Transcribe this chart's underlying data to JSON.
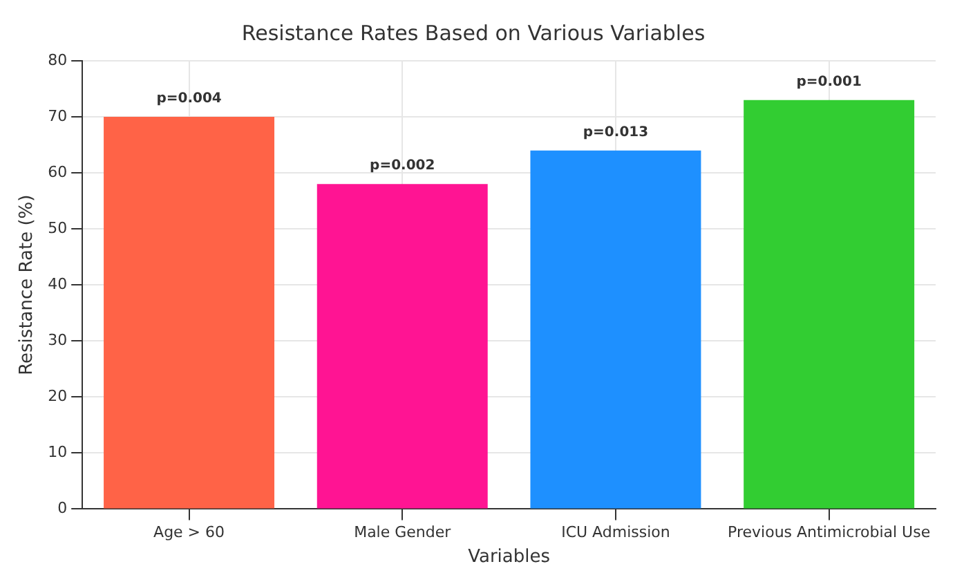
{
  "chart_data": {
    "type": "bar",
    "title": "Resistance Rates Based on Various Variables",
    "xlabel": "Variables",
    "ylabel": "Resistance Rate (%)",
    "categories": [
      "Age > 60",
      "Male Gender",
      "ICU Admission",
      "Previous Antimicrobial Use"
    ],
    "values": [
      70,
      58,
      64,
      73
    ],
    "colors": [
      "#ff6347",
      "#ff1493",
      "#1e90ff",
      "#32cd32"
    ],
    "ylim": [
      0,
      80
    ],
    "yticks": [
      0,
      10,
      20,
      30,
      40,
      50,
      60,
      70,
      80
    ],
    "grid": true,
    "annotations": [
      {
        "text": "p=0.004",
        "x": "Age > 60",
        "y": 70
      },
      {
        "text": "p=0.002",
        "x": "Male Gender",
        "y": 58
      },
      {
        "text": "p=0.013",
        "x": "ICU Admission",
        "y": 64
      },
      {
        "text": "p=0.001",
        "x": "Previous Antimicrobial Use",
        "y": 73
      }
    ]
  }
}
